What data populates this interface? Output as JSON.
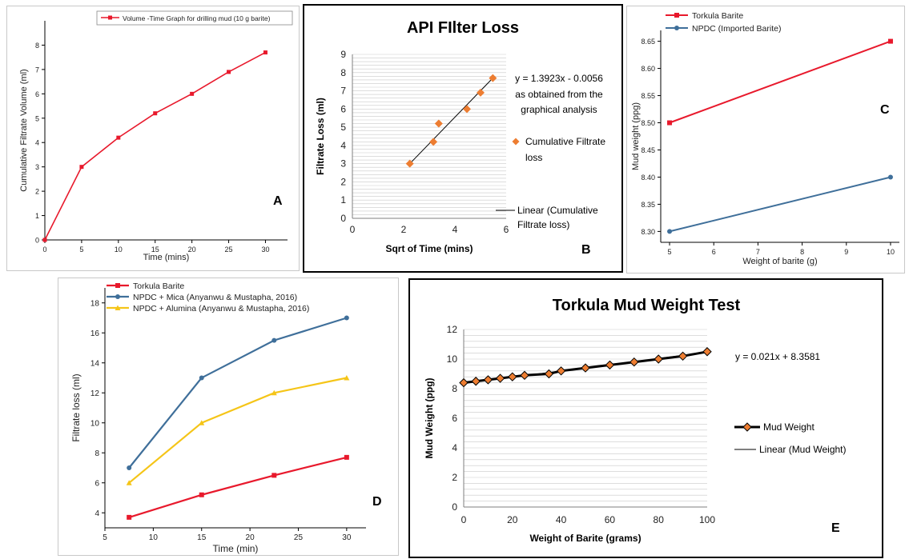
{
  "chart_data": [
    {
      "panel_letter": "A",
      "type": "line",
      "x": [
        0,
        5,
        10,
        15,
        20,
        25,
        30
      ],
      "series": [
        {
          "name": "Volume -Time Graph for drilling mud (10 g barite)",
          "values": [
            0,
            3.0,
            4.2,
            5.2,
            6.0,
            6.9,
            7.7
          ],
          "color": "#e8192c"
        }
      ],
      "xlabel": "Time (mins)",
      "ylabel": "Cumulative Filtrate Volume (ml)",
      "xlim": [
        0,
        33
      ],
      "ylim": [
        0,
        9
      ],
      "xticks": [
        "0",
        "5",
        "10",
        "15",
        "20",
        "25",
        "30"
      ],
      "yticks": [
        "0",
        "1",
        "2",
        "3",
        "4",
        "5",
        "6",
        "7",
        "8"
      ],
      "legend_position": "top-right",
      "grid": false
    },
    {
      "panel_letter": "B",
      "type": "scatter",
      "title": "API FIlter Loss",
      "x": [
        2.24,
        3.16,
        3.37,
        4.47,
        5.0,
        5.48
      ],
      "series": [
        {
          "name": "Cumulative Filtrate loss",
          "values": [
            3.0,
            4.2,
            5.2,
            6.0,
            6.9,
            7.7
          ],
          "color": "#ed7d31"
        }
      ],
      "trendline": {
        "name": "Linear (Cumulative Filtrate loss)",
        "x": [
          2.24,
          5.48
        ],
        "y": [
          3.0,
          7.7
        ]
      },
      "equation_label": "y = 1.3923x - 0.0056",
      "equation_note": [
        "as obtained from the",
        "graphical analysis"
      ],
      "xlabel": "Sqrt of Time (mins)",
      "ylabel": "Filtrate Loss (ml)",
      "xlim": [
        0,
        6
      ],
      "ylim": [
        0,
        9
      ],
      "xticks": [
        "0",
        "2",
        "4",
        "6"
      ],
      "yticks": [
        "0",
        "1",
        "2",
        "3",
        "4",
        "5",
        "6",
        "7",
        "8",
        "9"
      ],
      "legend_position": "right",
      "grid": true
    },
    {
      "panel_letter": "C",
      "type": "line",
      "x": [
        5,
        10
      ],
      "series": [
        {
          "name": "Torkula Barite",
          "values": [
            8.5,
            8.65
          ],
          "color": "#e8192c"
        },
        {
          "name": "NPDC (Imported Barite)",
          "values": [
            8.3,
            8.4
          ],
          "color": "#3f6f9a"
        }
      ],
      "xlabel": "Weight of barite (g)",
      "ylabel": "Mud weight (ppg)",
      "xlim": [
        4.8,
        10.2
      ],
      "ylim": [
        8.28,
        8.67
      ],
      "xticks": [
        "5",
        "6",
        "7",
        "8",
        "9",
        "10"
      ],
      "yticks": [
        "8.30",
        "8.35",
        "8.40",
        "8.45",
        "8.50",
        "8.55",
        "8.60",
        "8.65"
      ],
      "legend_position": "top-left",
      "grid": false
    },
    {
      "panel_letter": "D",
      "type": "line",
      "x": [
        7.5,
        15,
        22.5,
        30
      ],
      "series": [
        {
          "name": "Torkula Barite",
          "values": [
            3.7,
            5.2,
            6.5,
            7.7
          ],
          "color": "#e8192c"
        },
        {
          "name": "NPDC + Mica (Anyanwu & Mustapha, 2016)",
          "values": [
            7.0,
            13.0,
            15.5,
            17.0
          ],
          "color": "#3f6f9a"
        },
        {
          "name": "NPDC + Alumina (Anyanwu & Mustapha, 2016)",
          "values": [
            6.0,
            10.0,
            12.0,
            13.0
          ],
          "color": "#f5c518"
        }
      ],
      "xlabel": "Time (min)",
      "ylabel": "Filtrate loss (ml)",
      "xlim": [
        5,
        32
      ],
      "ylim": [
        3,
        19
      ],
      "xticks": [
        "5",
        "10",
        "15",
        "20",
        "25",
        "30"
      ],
      "yticks": [
        "4",
        "6",
        "8",
        "10",
        "12",
        "14",
        "16",
        "18"
      ],
      "legend_position": "top-left",
      "grid": false
    },
    {
      "panel_letter": "E",
      "type": "line",
      "title": "Torkula Mud Weight Test",
      "x": [
        0,
        5,
        10,
        15,
        20,
        25,
        35,
        40,
        50,
        60,
        70,
        80,
        90,
        100
      ],
      "series": [
        {
          "name": "Mud Weight",
          "values": [
            8.4,
            8.5,
            8.6,
            8.7,
            8.8,
            8.9,
            9.0,
            9.2,
            9.4,
            9.6,
            9.8,
            10.0,
            10.2,
            10.5
          ],
          "color": "#ed7d31"
        }
      ],
      "trendline": {
        "name": "Linear (Mud Weight)",
        "x": [
          0,
          100
        ],
        "y": [
          8.3581,
          10.4581
        ]
      },
      "equation_label": "y = 0.021x + 8.3581",
      "xlabel": "Weight of Barite (grams)",
      "ylabel": "Mud Weight (ppg)",
      "xlim": [
        0,
        100
      ],
      "ylim": [
        0,
        12
      ],
      "xticks": [
        "0",
        "20",
        "40",
        "60",
        "80",
        "100"
      ],
      "yticks": [
        "0",
        "2",
        "4",
        "6",
        "8",
        "10",
        "12"
      ],
      "legend_position": "right",
      "grid": true
    }
  ]
}
